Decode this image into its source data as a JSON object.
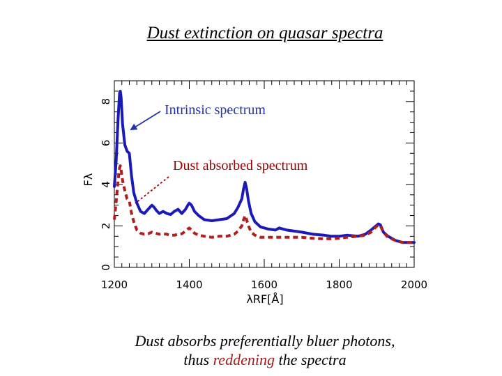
{
  "slide": {
    "title": "Dust extinction on quasar spectra",
    "caption_line1": "Dust absorbs preferentially bluer photons,",
    "caption_line2_prefix": "thus ",
    "caption_line2_highlight": "reddening",
    "caption_line2_suffix": " the spectra"
  },
  "colors": {
    "intrinsic": "#1a1ab8",
    "absorbed": "#b01e1e",
    "highlight": "#a01e1e",
    "intrinsic_label": "#2233aa",
    "absorbed_label": "#990000"
  },
  "chart_data": {
    "type": "line",
    "xlabel": "λRF[Å]",
    "ylabel": "Fλ",
    "xlim": [
      1200,
      2000
    ],
    "ylim": [
      0,
      9
    ],
    "x_ticks": [
      1200,
      1400,
      1600,
      1800,
      2000
    ],
    "y_ticks": [
      0,
      2,
      4,
      6,
      8
    ],
    "grid": false,
    "annotations": [
      {
        "text": "Intrinsic spectrum",
        "series": "intrinsic"
      },
      {
        "text": "Dust absorbed spectrum",
        "series": "absorbed"
      }
    ],
    "series": [
      {
        "key": "intrinsic",
        "style": "solid",
        "x": [
          1200,
          1205,
          1210,
          1214,
          1216,
          1218,
          1222,
          1228,
          1234,
          1240,
          1246,
          1252,
          1260,
          1270,
          1280,
          1290,
          1300,
          1306,
          1312,
          1320,
          1330,
          1340,
          1350,
          1360,
          1370,
          1380,
          1390,
          1396,
          1400,
          1406,
          1414,
          1425,
          1440,
          1460,
          1480,
          1500,
          1520,
          1530,
          1540,
          1545,
          1549,
          1553,
          1558,
          1565,
          1575,
          1590,
          1610,
          1630,
          1640,
          1660,
          1680,
          1700,
          1730,
          1760,
          1780,
          1800,
          1820,
          1850,
          1870,
          1885,
          1898,
          1905,
          1910,
          1918,
          1930,
          1950,
          1970,
          2000
        ],
        "y": [
          3.9,
          5.2,
          7.2,
          8.4,
          8.5,
          8.2,
          6.9,
          5.9,
          5.6,
          5.5,
          4.4,
          3.6,
          3.1,
          2.7,
          2.6,
          2.8,
          3.0,
          2.9,
          2.75,
          2.6,
          2.7,
          2.6,
          2.55,
          2.7,
          2.8,
          2.6,
          2.8,
          3.0,
          3.1,
          3.0,
          2.7,
          2.5,
          2.3,
          2.25,
          2.3,
          2.35,
          2.6,
          2.9,
          3.3,
          3.8,
          4.1,
          3.8,
          3.2,
          2.6,
          2.2,
          1.95,
          1.85,
          1.8,
          1.9,
          1.8,
          1.75,
          1.7,
          1.6,
          1.55,
          1.5,
          1.5,
          1.55,
          1.5,
          1.6,
          1.8,
          2.0,
          2.1,
          2.05,
          1.7,
          1.5,
          1.3,
          1.2,
          1.2
        ]
      },
      {
        "key": "absorbed",
        "style": "dashed",
        "x": [
          1200,
          1205,
          1210,
          1214,
          1216,
          1218,
          1222,
          1228,
          1234,
          1240,
          1246,
          1252,
          1260,
          1270,
          1280,
          1290,
          1300,
          1310,
          1320,
          1330,
          1340,
          1350,
          1360,
          1370,
          1380,
          1390,
          1396,
          1400,
          1406,
          1414,
          1425,
          1440,
          1460,
          1480,
          1500,
          1520,
          1530,
          1540,
          1545,
          1549,
          1553,
          1558,
          1565,
          1575,
          1590,
          1610,
          1630,
          1660,
          1700,
          1730,
          1760,
          1780,
          1800,
          1820,
          1850,
          1870,
          1885,
          1898,
          1905,
          1910,
          1918,
          1930,
          1950,
          1970,
          2000
        ],
        "y": [
          2.3,
          3.2,
          4.2,
          4.8,
          4.9,
          4.7,
          4.2,
          3.7,
          3.3,
          3.2,
          2.6,
          2.2,
          1.8,
          1.65,
          1.6,
          1.62,
          1.7,
          1.65,
          1.6,
          1.62,
          1.6,
          1.55,
          1.55,
          1.6,
          1.62,
          1.75,
          1.85,
          1.9,
          1.8,
          1.65,
          1.55,
          1.5,
          1.45,
          1.5,
          1.5,
          1.6,
          1.75,
          2.0,
          2.3,
          2.5,
          2.3,
          2.0,
          1.7,
          1.55,
          1.45,
          1.45,
          1.45,
          1.45,
          1.45,
          1.4,
          1.38,
          1.38,
          1.4,
          1.45,
          1.5,
          1.55,
          1.7,
          1.95,
          2.05,
          2.0,
          1.7,
          1.45,
          1.3,
          1.2,
          1.2
        ]
      }
    ]
  }
}
